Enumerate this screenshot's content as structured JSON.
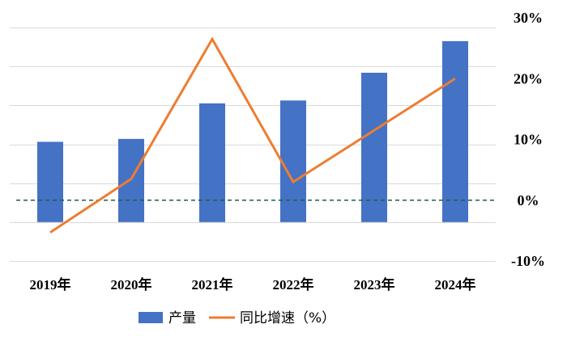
{
  "chart_data": {
    "type": "bar",
    "categories": [
      "2019年",
      "2020年",
      "2021年",
      "2022年",
      "2023年",
      "2024年"
    ],
    "series": [
      {
        "name": "产量",
        "type": "bar",
        "axis": "left",
        "color": "#4472C4",
        "values": [
          165,
          171,
          244,
          250,
          307,
          372
        ]
      },
      {
        "name": "同比增速（%）",
        "type": "line",
        "axis": "right",
        "color": "#ED7D31",
        "values": [
          -5.3,
          3.5,
          26.5,
          3.0,
          11.5,
          20.0
        ]
      }
    ],
    "left_axis": {
      "range": [
        -80,
        420
      ],
      "gridlines": [
        -80,
        0,
        80,
        160,
        240,
        320,
        400
      ],
      "labels_shown": false
    },
    "right_axis": {
      "range": [
        -10,
        30
      ],
      "ticks": [
        -10,
        0,
        10,
        20,
        30
      ],
      "tick_labels": [
        "-10%",
        "0%",
        "10%",
        "20%",
        "30%"
      ]
    },
    "reference_line": {
      "axis": "right",
      "value": 0,
      "style": "dashed",
      "color": "#1F5C4A"
    },
    "grid": true,
    "legend_position": "bottom"
  }
}
